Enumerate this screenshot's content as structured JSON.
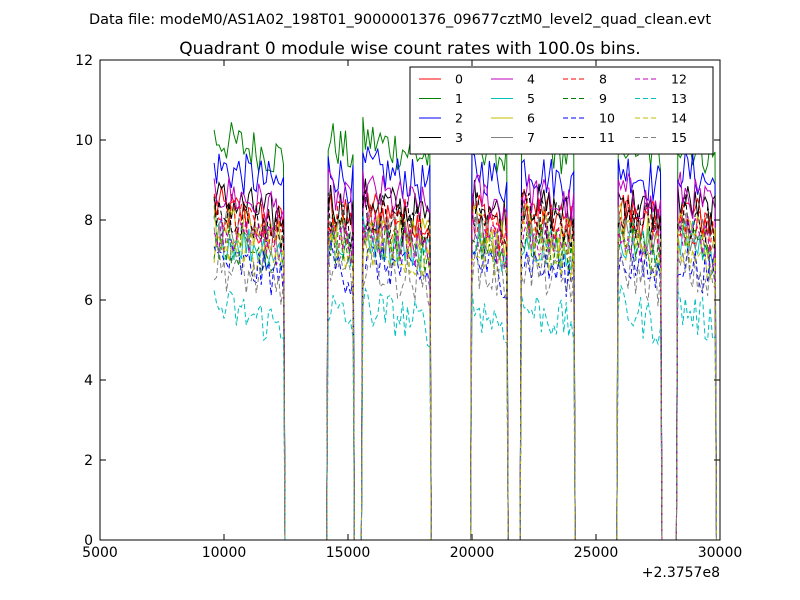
{
  "header": {
    "suptitle": "Data file: modeM0/AS1A02_198T01_9000001376_09677cztM0_level2_quad_clean.evt"
  },
  "chart_data": {
    "type": "line",
    "title": "Quadrant 0 module wise count rates with 100.0s bins.",
    "xlabel": "",
    "ylabel": "",
    "xlim": [
      5000,
      30000
    ],
    "ylim": [
      0,
      12
    ],
    "x_offset_label": "+2.3757e8",
    "xticks": [
      5000,
      10000,
      15000,
      20000,
      25000,
      30000
    ],
    "yticks": [
      0,
      2,
      4,
      6,
      8,
      10,
      12
    ],
    "xtick_labels": [
      "5000",
      "10000",
      "15000",
      "20000",
      "25000",
      "30000"
    ],
    "ytick_labels": [
      "0",
      "2",
      "4",
      "6",
      "8",
      "10",
      "12"
    ],
    "grid": false,
    "legend_position": "top-right",
    "segments": [
      [
        9600,
        12400
      ],
      [
        14200,
        15200
      ],
      [
        15600,
        18300
      ],
      [
        20000,
        21400
      ],
      [
        22000,
        24100
      ],
      [
        25900,
        27600
      ],
      [
        28300,
        29800
      ]
    ],
    "bin_seconds": 100,
    "series": [
      {
        "name": "0",
        "color": "#ff0000",
        "dash": "solid",
        "level": 8.0
      },
      {
        "name": "1",
        "color": "#008000",
        "dash": "solid",
        "level": 9.7
      },
      {
        "name": "2",
        "color": "#0000ff",
        "dash": "solid",
        "level": 9.0
      },
      {
        "name": "3",
        "color": "#000000",
        "dash": "solid",
        "level": 8.2
      },
      {
        "name": "4",
        "color": "#bf00bf",
        "dash": "solid",
        "level": 8.4
      },
      {
        "name": "5",
        "color": "#00bfbf",
        "dash": "solid",
        "level": 7.3
      },
      {
        "name": "6",
        "color": "#bfbf00",
        "dash": "solid",
        "level": 7.6
      },
      {
        "name": "7",
        "color": "#808080",
        "dash": "solid",
        "level": 7.5
      },
      {
        "name": "8",
        "color": "#ff0000",
        "dash": "dashed",
        "level": 7.8
      },
      {
        "name": "9",
        "color": "#008000",
        "dash": "dashed",
        "level": 7.2
      },
      {
        "name": "10",
        "color": "#0000ff",
        "dash": "dashed",
        "level": 6.7
      },
      {
        "name": "11",
        "color": "#000000",
        "dash": "dashed",
        "level": 7.9
      },
      {
        "name": "12",
        "color": "#bf00bf",
        "dash": "dashed",
        "level": 7.4
      },
      {
        "name": "13",
        "color": "#00bfbf",
        "dash": "dashed",
        "level": 5.5
      },
      {
        "name": "14",
        "color": "#bfbf00",
        "dash": "dashed",
        "level": 7.1
      },
      {
        "name": "15",
        "color": "#808080",
        "dash": "dashed",
        "level": 6.5
      }
    ]
  }
}
